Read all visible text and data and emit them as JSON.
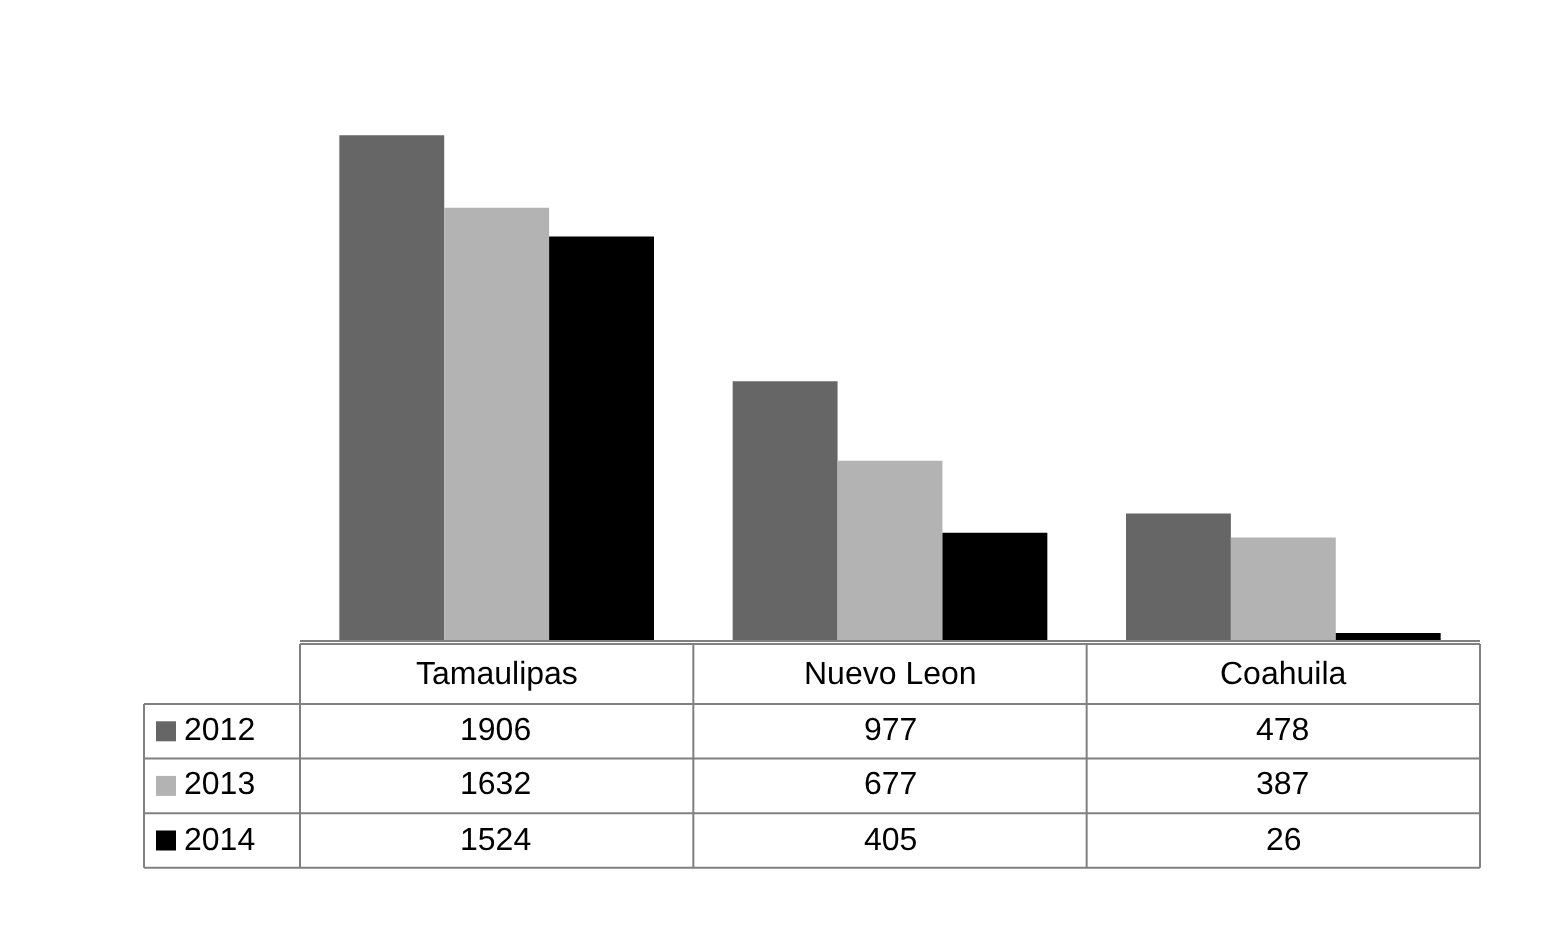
{
  "chart_data": {
    "type": "bar",
    "categories": [
      "Tamaulipas",
      "Nuevo Leon",
      "Coahuila"
    ],
    "series": [
      {
        "name": "2012",
        "color": "#666666",
        "values": [
          1906,
          977,
          478
        ]
      },
      {
        "name": "2013",
        "color": "#b3b3b3",
        "values": [
          1632,
          677,
          387
        ]
      },
      {
        "name": "2014",
        "color": "#000000",
        "values": [
          1524,
          405,
          26
        ]
      }
    ],
    "data_labels": true,
    "legend": "bottom"
  }
}
